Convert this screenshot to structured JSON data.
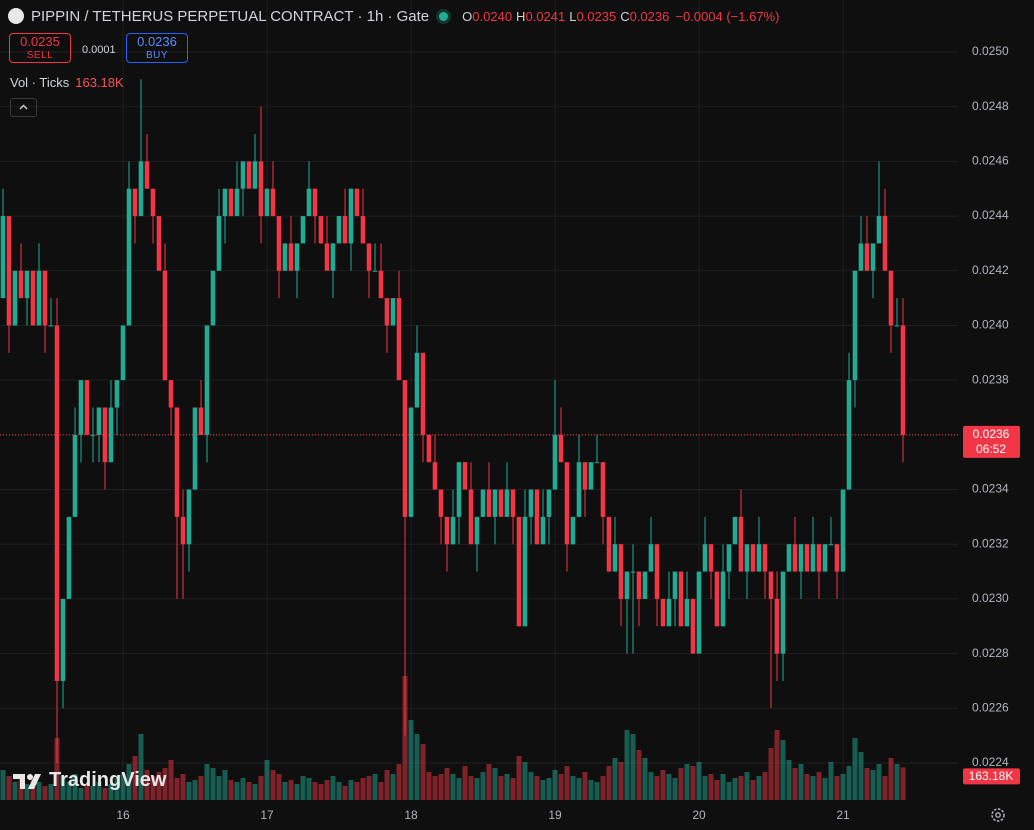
{
  "header": {
    "title": "PIPPIN / TETHERUS PERPETUAL CONTRACT · 1h · Gate",
    "ohlc": [
      {
        "label": "O",
        "value": "0.0240"
      },
      {
        "label": "H",
        "value": "0.0241"
      },
      {
        "label": "L",
        "value": "0.0235"
      },
      {
        "label": "C",
        "value": "0.0236"
      }
    ],
    "change": "−0.0004 (−1.67%)",
    "sell_price": "0.0235",
    "sell_label": "SELL",
    "spread": "0.0001",
    "buy_price": "0.0236",
    "buy_label": "BUY",
    "volume_legend": "Vol · Ticks",
    "watermark": "TradingView"
  },
  "price_tag": {
    "price": "0.0236",
    "countdown": "06:52"
  },
  "chart_data": {
    "type": "candlestick",
    "up_color": "#22ab94",
    "down_color": "#f23645",
    "grid": true,
    "ylim": [
      0.0224,
      0.025
    ],
    "yticks": [
      0.0224,
      0.0226,
      0.0228,
      {
        "value": 0.023,
        "label": "0.0230"
      },
      0.0232,
      0.0234,
      0.0236,
      0.0238,
      {
        "value": 0.024,
        "label": "0.0240"
      },
      0.0242,
      0.0244,
      0.0246,
      0.0248,
      {
        "value": 0.025,
        "label": "0.0250"
      }
    ],
    "categories": [
      null,
      null,
      null,
      null,
      null,
      null,
      null,
      null,
      null,
      null,
      null,
      null,
      null,
      null,
      null,
      null,
      null,
      null,
      null,
      null,
      "16",
      null,
      null,
      null,
      null,
      null,
      null,
      null,
      null,
      null,
      null,
      null,
      null,
      null,
      null,
      null,
      null,
      null,
      null,
      null,
      null,
      null,
      null,
      null,
      "17",
      null,
      null,
      null,
      null,
      null,
      null,
      null,
      null,
      null,
      null,
      null,
      null,
      null,
      null,
      null,
      null,
      null,
      null,
      null,
      null,
      null,
      null,
      null,
      "18",
      null,
      null,
      null,
      null,
      null,
      null,
      null,
      null,
      null,
      null,
      null,
      null,
      null,
      null,
      null,
      null,
      null,
      null,
      null,
      null,
      null,
      null,
      null,
      "19",
      null,
      null,
      null,
      null,
      null,
      null,
      null,
      null,
      null,
      null,
      null,
      null,
      null,
      null,
      null,
      null,
      null,
      null,
      null,
      null,
      null,
      null,
      null,
      "20",
      null,
      null,
      null,
      null,
      null,
      null,
      null,
      null,
      null,
      null,
      null,
      null,
      null,
      null,
      null,
      null,
      null,
      null,
      null,
      null,
      null,
      null,
      null,
      "21",
      null,
      null,
      null,
      null,
      null,
      null,
      null,
      null,
      null,
      null
    ],
    "candles": [
      [
        0.0241,
        0.0245,
        0.0241,
        0.0244
      ],
      [
        0.0244,
        0.0244,
        0.0239,
        0.024
      ],
      [
        0.024,
        0.0242,
        0.024,
        0.0242
      ],
      [
        0.0242,
        0.0243,
        0.0241,
        0.0241
      ],
      [
        0.0241,
        0.0242,
        0.024,
        0.0242
      ],
      [
        0.0242,
        0.0242,
        0.024,
        0.024
      ],
      [
        0.024,
        0.0243,
        0.024,
        0.0242
      ],
      [
        0.0242,
        0.0242,
        0.0239,
        0.024
      ],
      [
        0.024,
        0.0241,
        0.024,
        0.024
      ],
      [
        0.024,
        0.0241,
        0.0224,
        0.0227
      ],
      [
        0.0227,
        0.023,
        0.0226,
        0.023
      ],
      [
        0.023,
        0.0233,
        0.023,
        0.0233
      ],
      [
        0.0233,
        0.0237,
        0.0233,
        0.0236
      ],
      [
        0.0236,
        0.0238,
        0.0235,
        0.0238
      ],
      [
        0.0238,
        0.0238,
        0.0236,
        0.0236
      ],
      [
        0.0236,
        0.0237,
        0.0235,
        0.0236
      ],
      [
        0.0236,
        0.0237,
        0.0235,
        0.0237
      ],
      [
        0.0237,
        0.0237,
        0.0234,
        0.0235
      ],
      [
        0.0235,
        0.0238,
        0.0235,
        0.0237
      ],
      [
        0.0237,
        0.0238,
        0.0236,
        0.0238
      ],
      [
        0.0238,
        0.024,
        0.0238,
        0.024
      ],
      [
        0.024,
        0.0246,
        0.024,
        0.0245
      ],
      [
        0.0245,
        0.0245,
        0.0243,
        0.0244
      ],
      [
        0.0244,
        0.0249,
        0.0244,
        0.0246
      ],
      [
        0.0246,
        0.0247,
        0.0245,
        0.0245
      ],
      [
        0.0245,
        0.0245,
        0.0243,
        0.0244
      ],
      [
        0.0244,
        0.0244,
        0.0242,
        0.0242
      ],
      [
        0.0242,
        0.0243,
        0.0238,
        0.0238
      ],
      [
        0.0238,
        0.0238,
        0.0236,
        0.0237
      ],
      [
        0.0237,
        0.0237,
        0.023,
        0.0233
      ],
      [
        0.0233,
        0.0234,
        0.023,
        0.0232
      ],
      [
        0.0232,
        0.0234,
        0.0231,
        0.0234
      ],
      [
        0.0234,
        0.0237,
        0.0234,
        0.0237
      ],
      [
        0.0237,
        0.0238,
        0.0236,
        0.0236
      ],
      [
        0.0236,
        0.024,
        0.0235,
        0.024
      ],
      [
        0.024,
        0.0242,
        0.024,
        0.0242
      ],
      [
        0.0242,
        0.0245,
        0.0242,
        0.0244
      ],
      [
        0.0244,
        0.0245,
        0.0243,
        0.0245
      ],
      [
        0.0245,
        0.0245,
        0.0244,
        0.0244
      ],
      [
        0.0244,
        0.0246,
        0.0244,
        0.0245
      ],
      [
        0.0245,
        0.0246,
        0.0244,
        0.0246
      ],
      [
        0.0246,
        0.0246,
        0.0245,
        0.0245
      ],
      [
        0.0245,
        0.0247,
        0.0245,
        0.0246
      ],
      [
        0.0246,
        0.0248,
        0.0243,
        0.0244
      ],
      [
        0.0244,
        0.0245,
        0.0244,
        0.0245
      ],
      [
        0.0245,
        0.0246,
        0.0244,
        0.0244
      ],
      [
        0.0244,
        0.0244,
        0.0241,
        0.0242
      ],
      [
        0.0242,
        0.0243,
        0.0242,
        0.0243
      ],
      [
        0.0243,
        0.0244,
        0.0242,
        0.0242
      ],
      [
        0.0242,
        0.0243,
        0.0241,
        0.0243
      ],
      [
        0.0243,
        0.0244,
        0.0243,
        0.0244
      ],
      [
        0.0244,
        0.0246,
        0.0244,
        0.0245
      ],
      [
        0.0245,
        0.0245,
        0.0243,
        0.0244
      ],
      [
        0.0244,
        0.0244,
        0.0243,
        0.0243
      ],
      [
        0.0243,
        0.0244,
        0.0242,
        0.0242
      ],
      [
        0.0242,
        0.0243,
        0.0241,
        0.0243
      ],
      [
        0.0243,
        0.0244,
        0.0243,
        0.0244
      ],
      [
        0.0244,
        0.0245,
        0.0243,
        0.0243
      ],
      [
        0.0243,
        0.0245,
        0.0242,
        0.0245
      ],
      [
        0.0245,
        0.0245,
        0.0244,
        0.0244
      ],
      [
        0.0244,
        0.0245,
        0.0243,
        0.0243
      ],
      [
        0.0243,
        0.0243,
        0.0241,
        0.0242
      ],
      [
        0.0242,
        0.0243,
        0.0242,
        0.0242
      ],
      [
        0.0242,
        0.0243,
        0.0241,
        0.0241
      ],
      [
        0.0241,
        0.0241,
        0.0239,
        0.024
      ],
      [
        0.024,
        0.0241,
        0.024,
        0.0241
      ],
      [
        0.0241,
        0.0242,
        0.0238,
        0.0238
      ],
      [
        0.0238,
        0.0238,
        0.0225,
        0.0233
      ],
      [
        0.0233,
        0.0237,
        0.0233,
        0.0237
      ],
      [
        0.0237,
        0.024,
        0.0237,
        0.0239
      ],
      [
        0.0239,
        0.0239,
        0.0235,
        0.0236
      ],
      [
        0.0236,
        0.0236,
        0.0235,
        0.0235
      ],
      [
        0.0235,
        0.0236,
        0.0234,
        0.0234
      ],
      [
        0.0234,
        0.0234,
        0.0232,
        0.0233
      ],
      [
        0.0233,
        0.0233,
        0.0231,
        0.0232
      ],
      [
        0.0232,
        0.0234,
        0.0232,
        0.0233
      ],
      [
        0.0233,
        0.0235,
        0.0232,
        0.0235
      ],
      [
        0.0235,
        0.0235,
        0.0234,
        0.0234
      ],
      [
        0.0234,
        0.0235,
        0.0232,
        0.0232
      ],
      [
        0.0232,
        0.0233,
        0.0231,
        0.0233
      ],
      [
        0.0233,
        0.0234,
        0.0233,
        0.0234
      ],
      [
        0.0234,
        0.0235,
        0.0233,
        0.0233
      ],
      [
        0.0233,
        0.0234,
        0.0232,
        0.0234
      ],
      [
        0.0234,
        0.0234,
        0.0233,
        0.0233
      ],
      [
        0.0233,
        0.0235,
        0.0233,
        0.0234
      ],
      [
        0.0234,
        0.0234,
        0.0232,
        0.0233
      ],
      [
        0.0233,
        0.0233,
        0.0229,
        0.0229
      ],
      [
        0.0229,
        0.0234,
        0.0229,
        0.0233
      ],
      [
        0.0233,
        0.0234,
        0.0232,
        0.0234
      ],
      [
        0.0234,
        0.0234,
        0.0232,
        0.0232
      ],
      [
        0.0232,
        0.0234,
        0.0232,
        0.0233
      ],
      [
        0.0233,
        0.0234,
        0.0232,
        0.0234
      ],
      [
        0.0234,
        0.0238,
        0.0234,
        0.0236
      ],
      [
        0.0236,
        0.0237,
        0.0235,
        0.0235
      ],
      [
        0.0235,
        0.0235,
        0.0231,
        0.0232
      ],
      [
        0.0232,
        0.0233,
        0.0232,
        0.0233
      ],
      [
        0.0233,
        0.0236,
        0.0233,
        0.0235
      ],
      [
        0.0235,
        0.0235,
        0.0233,
        0.0234
      ],
      [
        0.0234,
        0.0235,
        0.0234,
        0.0235
      ],
      [
        0.0235,
        0.0236,
        0.0235,
        0.0235
      ],
      [
        0.0235,
        0.0235,
        0.0232,
        0.0233
      ],
      [
        0.0233,
        0.0233,
        0.0231,
        0.0231
      ],
      [
        0.0231,
        0.0233,
        0.0231,
        0.0232
      ],
      [
        0.0232,
        0.0232,
        0.0229,
        0.023
      ],
      [
        0.023,
        0.0231,
        0.0228,
        0.0231
      ],
      [
        0.0231,
        0.0232,
        0.0228,
        0.0231
      ],
      [
        0.0231,
        0.0231,
        0.0229,
        0.023
      ],
      [
        0.023,
        0.0231,
        0.023,
        0.0231
      ],
      [
        0.0231,
        0.0233,
        0.0231,
        0.0232
      ],
      [
        0.0232,
        0.0232,
        0.0229,
        0.023
      ],
      [
        0.023,
        0.023,
        0.0229,
        0.0229
      ],
      [
        0.0229,
        0.0231,
        0.0229,
        0.023
      ],
      [
        0.023,
        0.0231,
        0.0229,
        0.0231
      ],
      [
        0.0231,
        0.0231,
        0.0229,
        0.0229
      ],
      [
        0.0229,
        0.0231,
        0.0229,
        0.023
      ],
      [
        0.023,
        0.023,
        0.0228,
        0.0228
      ],
      [
        0.0228,
        0.0231,
        0.0228,
        0.0231
      ],
      [
        0.0231,
        0.0233,
        0.0231,
        0.0232
      ],
      [
        0.0232,
        0.0232,
        0.023,
        0.0231
      ],
      [
        0.0231,
        0.0231,
        0.0229,
        0.0229
      ],
      [
        0.0229,
        0.0232,
        0.0229,
        0.0231
      ],
      [
        0.0231,
        0.0232,
        0.023,
        0.0232
      ],
      [
        0.0232,
        0.0233,
        0.0232,
        0.0233
      ],
      [
        0.0233,
        0.0234,
        0.0231,
        0.0231
      ],
      [
        0.0231,
        0.0232,
        0.023,
        0.0232
      ],
      [
        0.0232,
        0.0232,
        0.0231,
        0.0231
      ],
      [
        0.0231,
        0.0233,
        0.0231,
        0.0232
      ],
      [
        0.0232,
        0.0232,
        0.023,
        0.0231
      ],
      [
        0.0231,
        0.0231,
        0.0226,
        0.023
      ],
      [
        0.023,
        0.0231,
        0.0227,
        0.0228
      ],
      [
        0.0228,
        0.0231,
        0.0227,
        0.0231
      ],
      [
        0.0231,
        0.0232,
        0.0231,
        0.0232
      ],
      [
        0.0232,
        0.0233,
        0.0231,
        0.0231
      ],
      [
        0.0231,
        0.0232,
        0.023,
        0.0232
      ],
      [
        0.0232,
        0.0232,
        0.0231,
        0.0231
      ],
      [
        0.0231,
        0.0233,
        0.0231,
        0.0232
      ],
      [
        0.0232,
        0.0232,
        0.023,
        0.0231
      ],
      [
        0.0231,
        0.0232,
        0.0231,
        0.0232
      ],
      [
        0.0232,
        0.0233,
        0.0232,
        0.0232
      ],
      [
        0.0232,
        0.0232,
        0.023,
        0.0231
      ],
      [
        0.0231,
        0.0234,
        0.0231,
        0.0234
      ],
      [
        0.0234,
        0.0239,
        0.0234,
        0.0238
      ],
      [
        0.0238,
        0.0242,
        0.0237,
        0.0242
      ],
      [
        0.0242,
        0.0244,
        0.0242,
        0.0243
      ],
      [
        0.0243,
        0.0244,
        0.0242,
        0.0242
      ],
      [
        0.0242,
        0.0243,
        0.0241,
        0.0243
      ],
      [
        0.0243,
        0.0246,
        0.0243,
        0.0244
      ],
      [
        0.0244,
        0.0245,
        0.0242,
        0.0242
      ],
      [
        0.0242,
        0.0242,
        0.0239,
        0.024
      ],
      [
        0.024,
        0.0241,
        0.024,
        0.024
      ],
      [
        0.024,
        0.0241,
        0.0235,
        0.0236
      ]
    ],
    "volume": {
      "ylim": [
        0,
        700
      ],
      "last_label": "163.18K",
      "values": [
        150,
        120,
        90,
        110,
        80,
        100,
        90,
        70,
        80,
        310,
        120,
        90,
        130,
        60,
        80,
        70,
        90,
        60,
        80,
        110,
        130,
        180,
        220,
        330,
        150,
        120,
        140,
        160,
        200,
        110,
        130,
        90,
        100,
        120,
        180,
        160,
        120,
        150,
        100,
        90,
        110,
        90,
        80,
        120,
        200,
        150,
        130,
        90,
        100,
        80,
        120,
        110,
        90,
        80,
        100,
        120,
        90,
        70,
        100,
        90,
        110,
        120,
        130,
        90,
        150,
        130,
        180,
        620,
        400,
        330,
        280,
        140,
        120,
        130,
        160,
        130,
        110,
        170,
        120,
        110,
        140,
        180,
        160,
        120,
        130,
        110,
        220,
        190,
        140,
        120,
        100,
        110,
        150,
        130,
        170,
        120,
        110,
        140,
        100,
        90,
        120,
        170,
        210,
        190,
        350,
        330,
        250,
        210,
        140,
        120,
        150,
        130,
        110,
        160,
        180,
        170,
        190,
        120,
        130,
        100,
        130,
        90,
        110,
        120,
        140,
        100,
        120,
        140,
        260,
        350,
        300,
        200,
        160,
        180,
        130,
        120,
        140,
        110,
        190,
        120,
        130,
        170,
        310,
        240,
        160,
        150,
        180,
        120,
        210,
        180,
        163.18
      ]
    }
  }
}
